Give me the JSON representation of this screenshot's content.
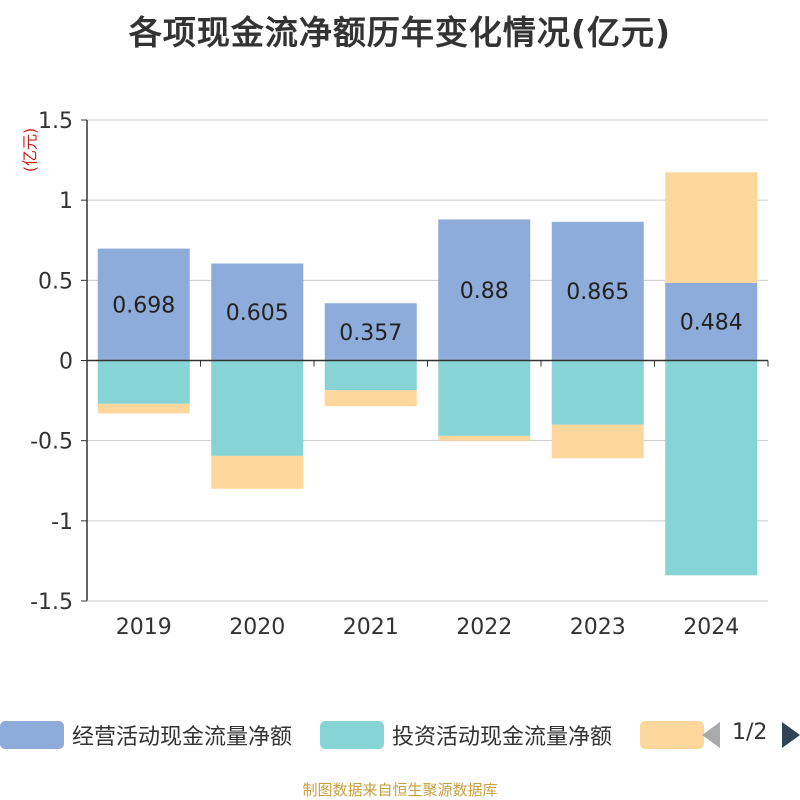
{
  "chart_data": {
    "type": "bar",
    "stacked": true,
    "title": "各项现金流净额历年变化情况(亿元)",
    "ylabel": "(亿元)",
    "categories": [
      "2019",
      "2020",
      "2021",
      "2022",
      "2023",
      "2024"
    ],
    "ylim": [
      -1.5,
      1.5
    ],
    "yticks": [
      1.5,
      1,
      0.5,
      0,
      -0.5,
      -1,
      -1.5
    ],
    "ytick_labels": [
      "1.5",
      "1",
      "0.5",
      "0",
      "-0.5",
      "-1",
      "-1.5"
    ],
    "grid": true,
    "legend_position": "bottom",
    "series": [
      {
        "name": "经营活动现金流量净额",
        "color": "#8eacd9",
        "values": [
          0.698,
          0.605,
          0.357,
          0.88,
          0.865,
          0.484
        ],
        "labels": [
          "0.698",
          "0.605",
          "0.357",
          "0.88",
          "0.865",
          "0.484"
        ]
      },
      {
        "name": "投资活动现金流量净额",
        "color": "#87d4d6",
        "values": [
          -0.27,
          -0.595,
          -0.185,
          -0.47,
          -0.4,
          -1.34
        ]
      },
      {
        "name": "",
        "color": "#fdd79b",
        "values": [
          -0.06,
          -0.205,
          -0.1,
          -0.03,
          -0.21,
          0.69
        ]
      }
    ]
  },
  "legend": {
    "page": "1/2"
  },
  "source": "制图数据来自恒生聚源数据库"
}
